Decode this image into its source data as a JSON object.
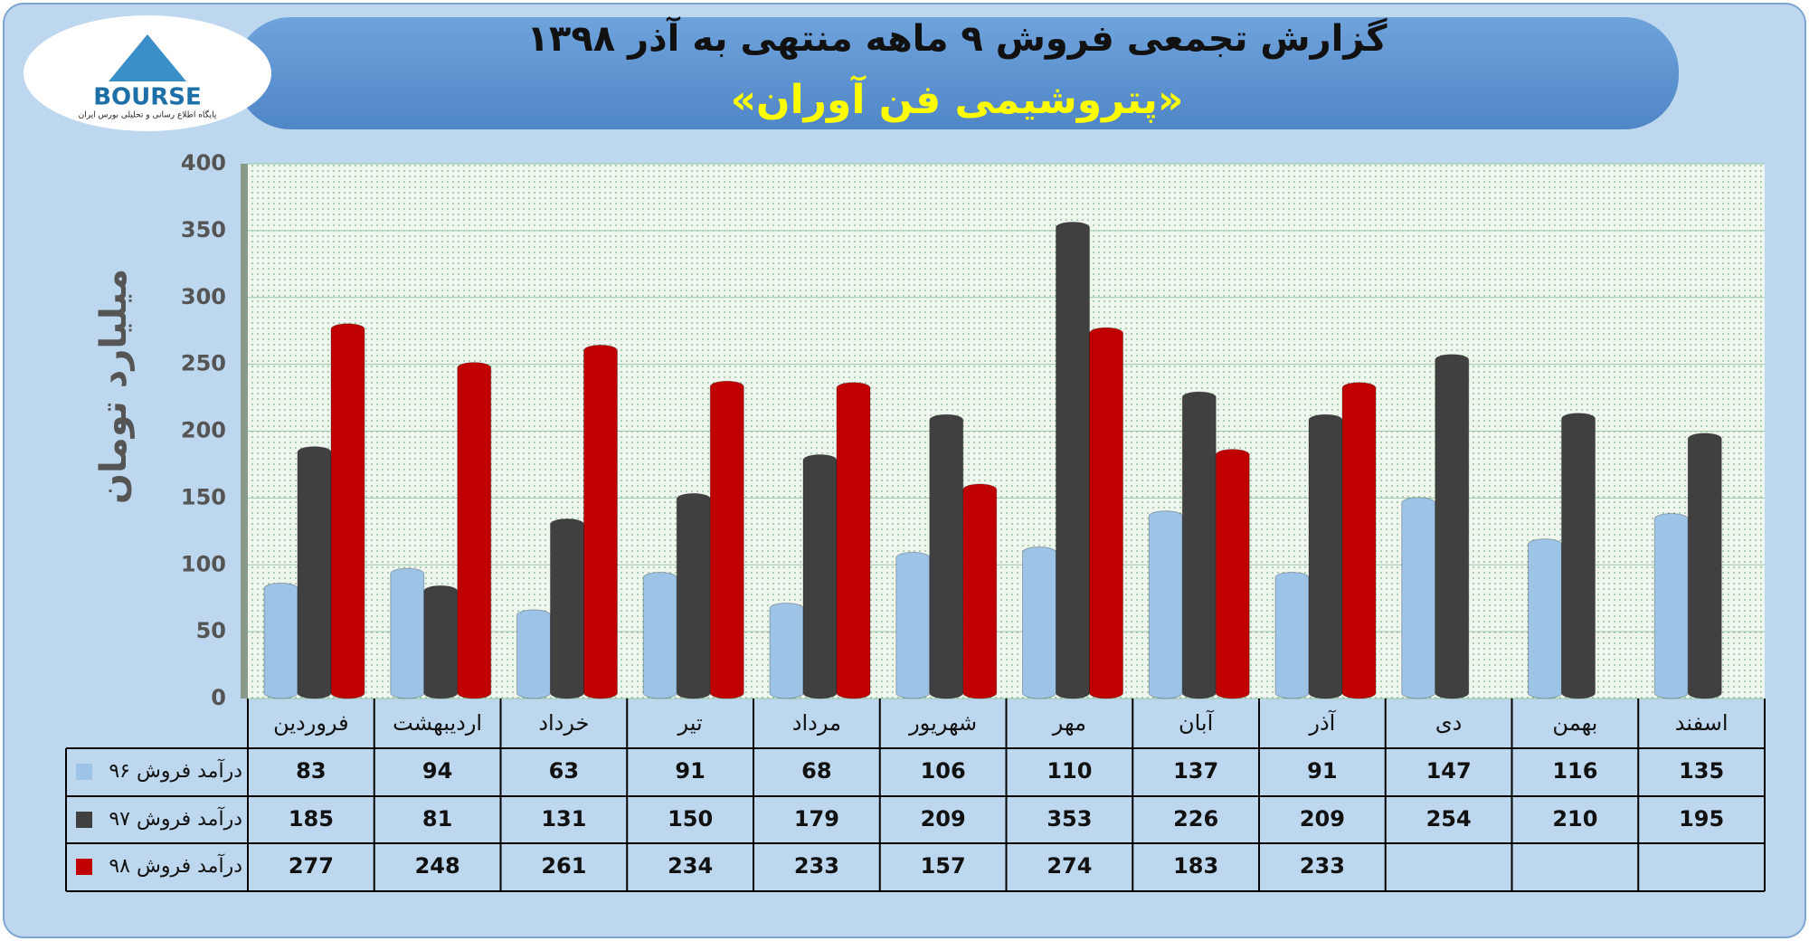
{
  "logo": {
    "name": "BOURSE",
    "caption": "پایگاه اطلاع رسانی و تحلیلی بورس ایران"
  },
  "chart_data": {
    "type": "bar",
    "title": "گزارش تجمعی فروش ۹ ماهه منتهی به آذر ۱۳۹۸",
    "subtitle": "«پتروشیمی فن آوران»",
    "y_label": "میلیارد تومان",
    "categories": [
      "فروردین",
      "اردیبهشت",
      "خرداد",
      "تیر",
      "مرداد",
      "شهریور",
      "مهر",
      "آبان",
      "آذر",
      "دی",
      "بهمن",
      "اسفند"
    ],
    "series": [
      {
        "name": "درآمد فروش ۹۶",
        "color": "#9dc3e6",
        "values": [
          83,
          94,
          63,
          91,
          68,
          106,
          110,
          137,
          91,
          147,
          116,
          135
        ]
      },
      {
        "name": "درآمد فروش ۹۷",
        "color": "#404040",
        "values": [
          185,
          81,
          131,
          150,
          179,
          209,
          353,
          226,
          209,
          254,
          210,
          195
        ]
      },
      {
        "name": "درآمد فروش ۹۸",
        "color": "#c00000",
        "values": [
          277,
          248,
          261,
          234,
          233,
          157,
          274,
          183,
          233,
          null,
          null,
          null
        ]
      }
    ],
    "ylim": [
      0,
      400
    ],
    "yticks": [
      0,
      50,
      100,
      150,
      200,
      250,
      300,
      350,
      400
    ],
    "grid": true
  }
}
